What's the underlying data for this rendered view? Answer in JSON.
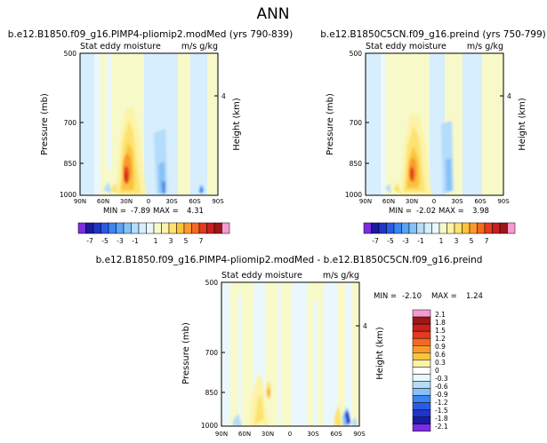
{
  "page_title": "ANN",
  "palette": [
    "#7b2de0",
    "#1a1aa0",
    "#1f35c8",
    "#2a5be6",
    "#3c84f0",
    "#5aa3f5",
    "#86c1f7",
    "#b4dcfb",
    "#d6eefd",
    "#eaf8fd",
    "#f7f9c9",
    "#fdf3a6",
    "#fce26e",
    "#fbc33c",
    "#f99a2c",
    "#f26a21",
    "#e63a1d",
    "#c81f1f",
    "#9e1616",
    "#f49ad0"
  ],
  "chart_data": [
    {
      "type": "heatmap",
      "title": "b.e12.B1850.f09_g16.PIMP4-pliomip2.modMed (yrs 790-839)",
      "subtitle_left": "Stat eddy moisture",
      "subtitle_right": "m/s g/kg",
      "ylabel": "Pressure (mb)",
      "ylabel_right": "Height (km)",
      "x_ticks": [
        "90N",
        "60N",
        "30N",
        "0",
        "30S",
        "60S",
        "90S"
      ],
      "y_ticks": [
        "500",
        "700",
        "850",
        "1000"
      ],
      "y_right_ticks": [
        "4"
      ],
      "min_label": "MIN =",
      "min_value": "-7.89",
      "max_label": "MAX =",
      "max_value": "4.31",
      "colorbar_labels": [
        "-7",
        "-5",
        "-3",
        "-1",
        "1",
        "3",
        "5",
        "7"
      ]
    },
    {
      "type": "heatmap",
      "title": "b.e12.B1850C5CN.f09_g16.preind (yrs 750-799)",
      "subtitle_left": "Stat eddy moisture",
      "subtitle_right": "m/s g/kg",
      "ylabel": "Pressure (mb)",
      "ylabel_right": "Height (km)",
      "x_ticks": [
        "90N",
        "60N",
        "30N",
        "0",
        "30S",
        "60S",
        "90S"
      ],
      "y_ticks": [
        "500",
        "700",
        "850",
        "1000"
      ],
      "y_right_ticks": [
        "4"
      ],
      "min_label": "MIN =",
      "min_value": "-2.02",
      "max_label": "MAX =",
      "max_value": "3.98",
      "colorbar_labels": [
        "-7",
        "-5",
        "-3",
        "-1",
        "1",
        "3",
        "5",
        "7"
      ]
    },
    {
      "type": "heatmap",
      "title": "b.e12.B1850.f09_g16.PIMP4-pliomip2.modMed - b.e12.B1850C5CN.f09_g16.preind",
      "subtitle_left": "Stat eddy moisture",
      "subtitle_right": "m/s g/kg",
      "ylabel": "Pressure (mb)",
      "ylabel_right": "Height (km)",
      "x_ticks": [
        "90N",
        "60N",
        "30N",
        "0",
        "30S",
        "60S",
        "90S"
      ],
      "y_ticks": [
        "500",
        "700",
        "850",
        "1000"
      ],
      "y_right_ticks": [
        "4"
      ],
      "min_label": "MIN =",
      "min_value": "-2.10",
      "max_label": "MAX =",
      "max_value": "1.24",
      "colorbar_labels": [
        "2.1",
        "1.8",
        "1.5",
        "1.2",
        "0.9",
        "0.6",
        "0.3",
        "0",
        "-0.3",
        "-0.6",
        "-0.9",
        "-1.2",
        "-1.5",
        "-1.8",
        "-2.1"
      ]
    }
  ]
}
